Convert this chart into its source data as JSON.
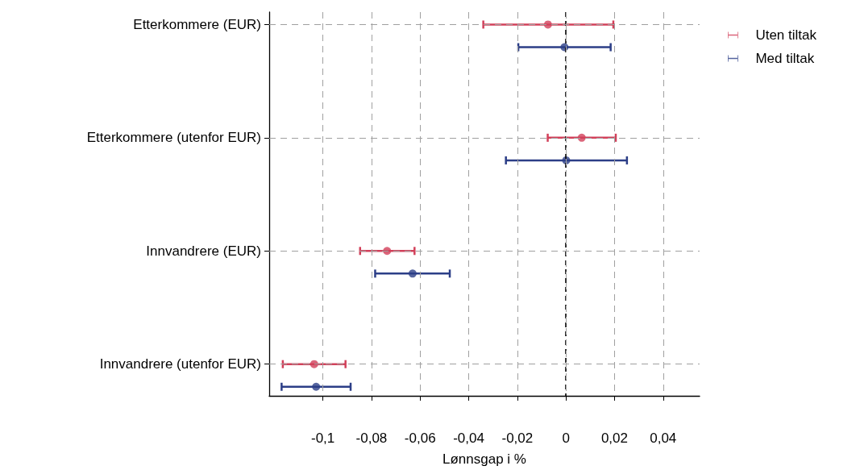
{
  "chart_data": {
    "type": "scatter",
    "orientation": "horizontal",
    "xlabel": "Lønnsgap i %",
    "categories": [
      "Etterkommere (EUR)",
      "Etterkommere (utenfor EUR)",
      "Innvandrere (EUR)",
      "Innvandrere (utenfor EUR)"
    ],
    "series": [
      {
        "name": "Uten tiltak",
        "color": "#d2405a",
        "values": [
          -0.0074,
          0.0065,
          -0.0736,
          -0.1036
        ],
        "errors": [
          [
            -0.034,
            0.0195
          ],
          [
            -0.0075,
            0.0205
          ],
          [
            -0.0847,
            -0.0623
          ],
          [
            -0.1165,
            -0.0907
          ]
        ]
      },
      {
        "name": "Med tiltak",
        "color": "#2c3e87",
        "values": [
          -0.0006,
          0.0001,
          -0.0631,
          -0.1028
        ],
        "errors": [
          [
            -0.0196,
            0.0184
          ],
          [
            -0.0247,
            0.0251
          ],
          [
            -0.0785,
            -0.0478
          ],
          [
            -0.117,
            -0.0886
          ]
        ]
      }
    ],
    "xlim": [
      -0.1221,
      0.055
    ],
    "xticks": [
      {
        "value": -0.1,
        "label": "-0,1"
      },
      {
        "value": -0.08,
        "label": "-0,08"
      },
      {
        "value": -0.06,
        "label": "-0,06"
      },
      {
        "value": -0.04,
        "label": "-0,04"
      },
      {
        "value": -0.02,
        "label": "-0,02"
      },
      0,
      {
        "value": 0.02,
        "label": "0,02"
      },
      {
        "value": 0.04,
        "label": "0,04"
      }
    ],
    "ref_lines": [
      {
        "axis": "x",
        "value": 0,
        "color": "#000000",
        "line_style": "dashed"
      }
    ],
    "grid": true,
    "legend": "top right",
    "marker": "circle"
  }
}
